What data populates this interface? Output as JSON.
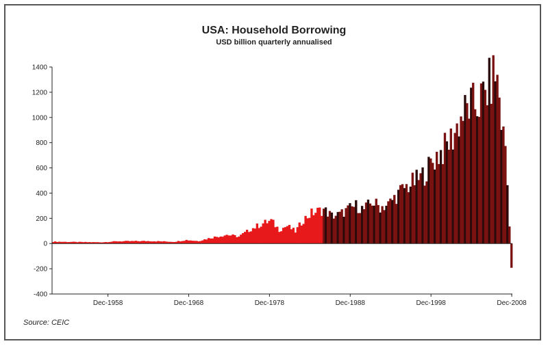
{
  "chart_data": {
    "type": "bar",
    "title": "USA: Household Borrowing",
    "subtitle": "USD billion quarterly annualised",
    "source": "Source: CEIC",
    "xlabel": "",
    "ylabel": "",
    "ylim": [
      -400,
      1400
    ],
    "y_ticks": [
      1400,
      1200,
      1000,
      800,
      600,
      400,
      200,
      0,
      -200,
      -400
    ],
    "y_tick_labels": [
      "1400",
      "1200",
      "1000",
      "800",
      "600",
      "400",
      "200",
      "0",
      "-200",
      "-400"
    ],
    "x_tick_labels": [
      "Dec-1958",
      "Dec-1968",
      "Dec-1978",
      "Dec-1988",
      "Dec-1998",
      "Dec-2008"
    ],
    "x_tick_years": [
      1958.92,
      1968.92,
      1978.92,
      1988.92,
      1998.92,
      2008.92
    ],
    "x_range": [
      1952.0,
      2009.0
    ],
    "grid": false,
    "colors": {
      "early": "#e8191b",
      "late": "#7a1212",
      "late_alt": "#2a0a0a",
      "axis": "#222222"
    },
    "color_switch_year": 1985.5,
    "series": [
      {
        "period": "quarterly",
        "keyframes": [
          [
            1952.0,
            15
          ],
          [
            1955.0,
            12
          ],
          [
            1958.0,
            10
          ],
          [
            1960.0,
            18
          ],
          [
            1964.0,
            20
          ],
          [
            1967.0,
            14
          ],
          [
            1968.5,
            28
          ],
          [
            1970.0,
            20
          ],
          [
            1971.5,
            45
          ],
          [
            1973.5,
            70
          ],
          [
            1975.0,
            55
          ],
          [
            1976.5,
            115
          ],
          [
            1978.0,
            160
          ],
          [
            1979.0,
            180
          ],
          [
            1980.0,
            110
          ],
          [
            1981.0,
            140
          ],
          [
            1982.0,
            95
          ],
          [
            1983.0,
            190
          ],
          [
            1984.0,
            240
          ],
          [
            1985.5,
            270
          ],
          [
            1986.5,
            220
          ],
          [
            1987.5,
            230
          ],
          [
            1988.5,
            270
          ],
          [
            1989.5,
            300
          ],
          [
            1990.5,
            270
          ],
          [
            1991.5,
            330
          ],
          [
            1992.5,
            290
          ],
          [
            1993.5,
            310
          ],
          [
            1994.5,
            380
          ],
          [
            1995.5,
            440
          ],
          [
            1996.5,
            480
          ],
          [
            1997.5,
            520
          ],
          [
            1998.5,
            600
          ],
          [
            1999.5,
            700
          ],
          [
            2000.5,
            750
          ],
          [
            2001.5,
            850
          ],
          [
            2002.5,
            1000
          ],
          [
            2003.5,
            1080
          ],
          [
            2004.5,
            1100
          ],
          [
            2005.5,
            1180
          ],
          [
            2006.2,
            1280
          ],
          [
            2006.8,
            1360
          ],
          [
            2007.2,
            1200
          ],
          [
            2007.6,
            900
          ],
          [
            2008.0,
            780
          ],
          [
            2008.3,
            400
          ],
          [
            2008.6,
            40
          ],
          [
            2008.8,
            -270
          ]
        ]
      }
    ]
  }
}
